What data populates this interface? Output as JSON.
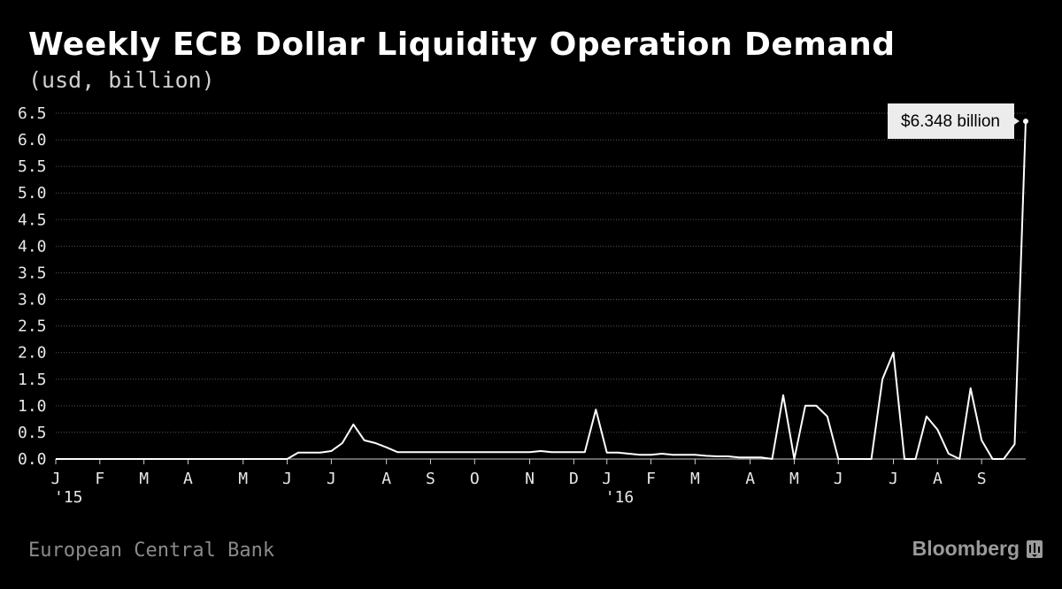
{
  "title": "Weekly ECB Dollar Liquidity Operation Demand",
  "subtitle": "(usd, billion)",
  "source": "European Central Bank",
  "brand": "Bloomberg",
  "colors": {
    "background": "#000000",
    "line": "#ffffff",
    "grid": "#555555",
    "callout": "#ececec"
  },
  "chart_data": {
    "type": "line",
    "title": "Weekly ECB Dollar Liquidity Operation Demand",
    "ylabel": "(usd, billion)",
    "xlabel": "",
    "ylim": [
      0,
      6.5
    ],
    "yticks": [
      "0.0",
      "0.5",
      "1.0",
      "1.5",
      "2.0",
      "2.5",
      "3.0",
      "3.5",
      "4.0",
      "4.5",
      "5.0",
      "5.5",
      "6.0",
      "6.5"
    ],
    "xtick_labels": [
      {
        "label": "J",
        "year": "'15",
        "week": 0
      },
      {
        "label": "F",
        "week": 4
      },
      {
        "label": "M",
        "week": 8
      },
      {
        "label": "A",
        "week": 12
      },
      {
        "label": "M",
        "week": 17
      },
      {
        "label": "J",
        "week": 21
      },
      {
        "label": "J",
        "week": 25
      },
      {
        "label": "A",
        "week": 30
      },
      {
        "label": "S",
        "week": 34
      },
      {
        "label": "O",
        "week": 38
      },
      {
        "label": "N",
        "week": 43
      },
      {
        "label": "D",
        "week": 47
      },
      {
        "label": "J",
        "year": "'16",
        "week": 50
      },
      {
        "label": "F",
        "week": 54
      },
      {
        "label": "M",
        "week": 58
      },
      {
        "label": "A",
        "week": 63
      },
      {
        "label": "M",
        "week": 67
      },
      {
        "label": "J",
        "week": 71
      },
      {
        "label": "J",
        "week": 76
      },
      {
        "label": "A",
        "week": 80
      },
      {
        "label": "S",
        "week": 84
      }
    ],
    "grid": true,
    "series": [
      {
        "values": [
          0,
          0,
          0,
          0,
          0,
          0,
          0,
          0,
          0,
          0,
          0,
          0,
          0,
          0,
          0,
          0,
          0,
          0,
          0,
          0,
          0,
          0,
          0.12,
          0.12,
          0.12,
          0.15,
          0.3,
          0.65,
          0.35,
          0.3,
          0.22,
          0.13,
          0.13,
          0.13,
          0.13,
          0.13,
          0.13,
          0.13,
          0.13,
          0.13,
          0.13,
          0.13,
          0.13,
          0.13,
          0.15,
          0.13,
          0.13,
          0.13,
          0.13,
          0.93,
          0.12,
          0.12,
          0.1,
          0.08,
          0.08,
          0.1,
          0.08,
          0.08,
          0.08,
          0.06,
          0.05,
          0.05,
          0.03,
          0.03,
          0.03,
          0,
          1.2,
          0,
          1.0,
          1.0,
          0.8,
          0,
          0,
          0,
          0,
          1.5,
          2.0,
          0,
          0,
          0.8,
          0.55,
          0.1,
          0,
          1.33,
          0.35,
          0,
          0,
          0.28,
          6.348
        ]
      }
    ],
    "callout": "$6.348 billion"
  }
}
